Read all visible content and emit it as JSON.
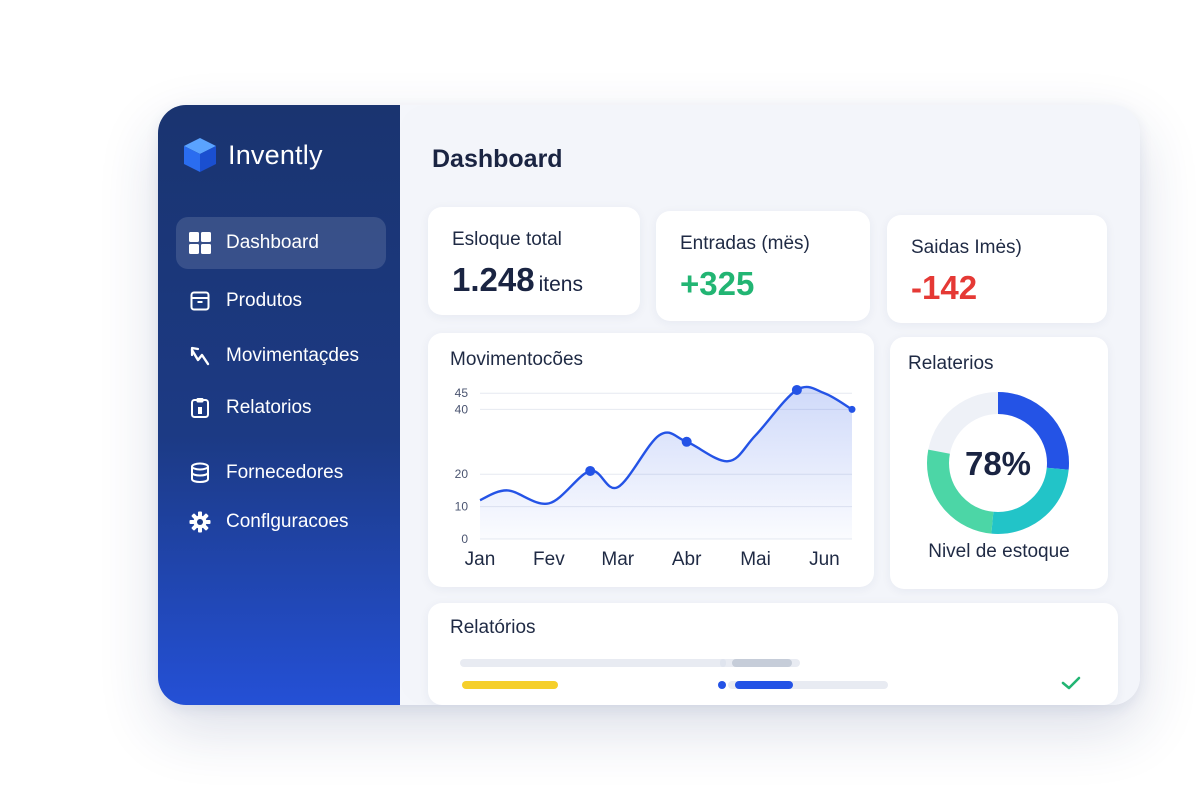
{
  "app": {
    "name": "Invently"
  },
  "sidebar": {
    "items": [
      {
        "label": "Dashboard",
        "icon": "grid-icon",
        "active": true
      },
      {
        "label": "Produtos",
        "icon": "box-icon",
        "active": false
      },
      {
        "label": "Movimentaçdes",
        "icon": "trend-arrow-icon",
        "active": false
      },
      {
        "label": "Relatorios",
        "icon": "clipboard-icon",
        "active": false
      },
      {
        "label": "Fornecedores",
        "icon": "database-icon",
        "active": false
      },
      {
        "label": "Conflguracoes",
        "icon": "gear-icon",
        "active": false
      }
    ]
  },
  "main": {
    "title": "Dashboard",
    "stats": [
      {
        "label": "Esloque total",
        "value": "1.248",
        "unit": "itens",
        "color": "#1a2442"
      },
      {
        "label": "Entradas (mës)",
        "value": "+325",
        "unit": "",
        "color": "#22b573"
      },
      {
        "label": "Saidas Imės)",
        "value": "-142",
        "unit": "",
        "color": "#e53935"
      }
    ],
    "movements": {
      "title": "Movimentocões"
    },
    "donut": {
      "title": "Relaterios",
      "percent_label": "78%",
      "caption": "Nivel de estoque"
    },
    "reports": {
      "title": "Relatórios"
    }
  },
  "colors": {
    "accent": "#2453e6",
    "positive": "#22b573",
    "negative": "#e53935",
    "donut_teal": "#22c4c8",
    "donut_green": "#4cd6a6",
    "report_yellow": "#f5cf2a"
  },
  "chart_data": {
    "type": "line",
    "title": "Movimentocões",
    "categories": [
      "Jan",
      "Fev",
      "Mar",
      "Abr",
      "Mai",
      "Jun"
    ],
    "y_ticks": [
      0,
      10,
      20,
      40,
      45
    ],
    "x": [
      0,
      0.4,
      1,
      1.6,
      2,
      2.6,
      3,
      3.6,
      4,
      4.6,
      5,
      5.4
    ],
    "values": [
      12,
      15,
      11,
      21,
      16,
      32,
      30,
      24,
      32,
      46,
      45,
      40
    ],
    "highlight_points": [
      {
        "x": 1.6,
        "y": 21
      },
      {
        "x": 3,
        "y": 30
      },
      {
        "x": 4.6,
        "y": 46
      },
      {
        "x": 5.4,
        "y": 40
      }
    ],
    "ylim": [
      0,
      50
    ],
    "grid": true
  }
}
